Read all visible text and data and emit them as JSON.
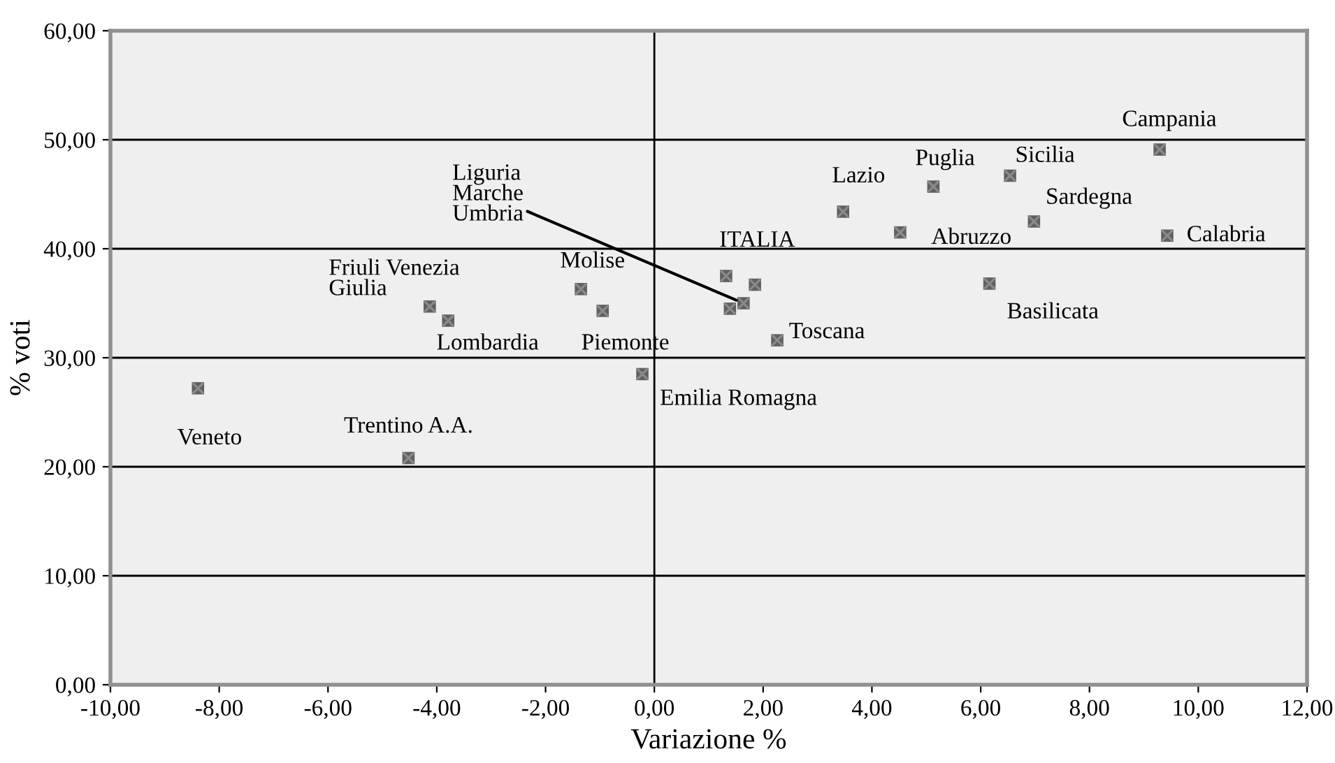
{
  "chart_data": {
    "type": "scatter",
    "xlabel": "Variazione %",
    "ylabel": "% voti",
    "series": [
      {
        "color": "#606060",
        "x": [
          -8.39,
          -4.13,
          -3.79,
          -4.52,
          -1.35,
          -0.95,
          -0.22,
          1.32,
          1.39,
          1.64,
          1.85,
          2.26,
          3.47,
          4.52,
          5.13,
          6.54,
          6.98,
          6.16,
          9.29,
          9.43
        ],
        "values": [
          27.2,
          34.7,
          33.4,
          20.8,
          36.3,
          34.3,
          28.5,
          37.5,
          34.5,
          35.0,
          36.7,
          31.6,
          43.4,
          41.5,
          45.7,
          46.7,
          42.5,
          36.8,
          49.1,
          41.2
        ]
      }
    ],
    "marker": "square",
    "grid": "y",
    "legend": false,
    "xlim": [
      -10,
      12
    ],
    "ylim": [
      0,
      60
    ],
    "xticks": [
      {
        "value": -10,
        "label": "-10,00"
      },
      {
        "value": -8,
        "label": "-8,00"
      },
      {
        "value": -6,
        "label": "-6,00"
      },
      {
        "value": -4,
        "label": "-4,00"
      },
      {
        "value": -2,
        "label": "-2,00"
      },
      {
        "value": 0,
        "label": "0,00"
      },
      {
        "value": 2,
        "label": "2,00"
      },
      {
        "value": 4,
        "label": "4,00"
      },
      {
        "value": 6,
        "label": "6,00"
      },
      {
        "value": 8,
        "label": "8,00"
      },
      {
        "value": 10,
        "label": "10,00"
      },
      {
        "value": 12,
        "label": "12,00"
      }
    ],
    "yticks": [
      {
        "value": 0,
        "label": "0,00"
      },
      {
        "value": 10,
        "label": "10,00"
      },
      {
        "value": 20,
        "label": "20,00"
      },
      {
        "value": 30,
        "label": "30,00"
      },
      {
        "value": 40,
        "label": "40,00"
      },
      {
        "value": 50,
        "label": "50,00"
      },
      {
        "value": 60,
        "label": "60,00"
      }
    ],
    "ref_lines": [
      {
        "axis": "x",
        "value": 0,
        "color": "#000000"
      }
    ],
    "annotations": [
      {
        "text": "Veneto",
        "x": -8.39,
        "y": 27.2
      },
      {
        "text": "Friuli Venezia\nGiulia",
        "x": -4.13,
        "y": 34.7
      },
      {
        "text": "Lombardia",
        "x": -3.79,
        "y": 33.4
      },
      {
        "text": "Trentino A.A.",
        "x": -4.52,
        "y": 20.8
      },
      {
        "text": "Molise",
        "x": -1.35,
        "y": 36.3
      },
      {
        "text": "Piemonte",
        "x": -0.95,
        "y": 34.3
      },
      {
        "text": "Emilia Romagna",
        "x": -0.22,
        "y": 28.5
      },
      {
        "text": "ITALIA",
        "x": 1.32,
        "y": 37.5
      },
      {
        "text": "Liguria\nMarche\nUmbria",
        "x": 1.64,
        "y": 35.0
      },
      {
        "text": "Toscana",
        "x": 2.26,
        "y": 31.6
      },
      {
        "text": "Lazio",
        "x": 3.47,
        "y": 43.4
      },
      {
        "text": "Abruzzo",
        "x": 4.52,
        "y": 41.5
      },
      {
        "text": "Puglia",
        "x": 5.13,
        "y": 45.7
      },
      {
        "text": "Sicilia",
        "x": 6.54,
        "y": 46.7
      },
      {
        "text": "Sardegna",
        "x": 6.98,
        "y": 42.5
      },
      {
        "text": "Basilicata",
        "x": 6.16,
        "y": 36.8
      },
      {
        "text": "Campania",
        "x": 9.29,
        "y": 49.1
      },
      {
        "text": "Calabria",
        "x": 9.43,
        "y": 41.2
      }
    ]
  }
}
